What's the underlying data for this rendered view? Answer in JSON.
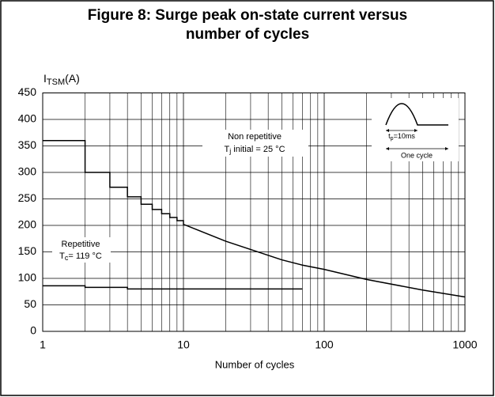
{
  "chart_data": {
    "type": "line",
    "title": [
      "Figure 8: Surge peak on-state current versus",
      "number of cycles"
    ],
    "ylabel": {
      "main": "I",
      "sub": "TSM",
      "unit": "(A)"
    },
    "xlabel": "Number of cycles",
    "xlog": true,
    "xlim": [
      1,
      1000
    ],
    "ylim": [
      0,
      450
    ],
    "xticks": [
      1,
      10,
      100,
      1000
    ],
    "xminor": [
      2,
      3,
      4,
      5,
      6,
      7,
      8,
      9,
      20,
      30,
      40,
      50,
      60,
      70,
      80,
      90,
      200,
      300,
      400,
      500,
      600,
      700,
      800,
      900
    ],
    "yticks": [
      0,
      50,
      100,
      150,
      200,
      250,
      300,
      350,
      400,
      450
    ],
    "grid": true,
    "series": [
      {
        "name": "Non repetitive",
        "color": "#000000",
        "x": [
          1,
          2,
          2,
          3,
          3,
          4,
          4,
          5,
          5,
          6,
          6,
          7,
          7,
          8,
          8,
          9,
          9,
          10,
          10,
          20,
          50,
          70,
          100,
          200,
          500,
          1000
        ],
        "values": [
          360,
          360,
          300,
          300,
          272,
          272,
          254,
          254,
          240,
          240,
          230,
          230,
          222,
          222,
          215,
          215,
          209,
          209,
          202,
          170,
          135,
          125,
          117,
          98,
          78,
          65
        ]
      },
      {
        "name": "Repetitive",
        "color": "#000000",
        "x": [
          1,
          2,
          2,
          4,
          4,
          70
        ],
        "values": [
          86,
          86,
          83,
          83,
          80,
          80
        ]
      }
    ],
    "annotations": {
      "non_repetitive": {
        "line1": "Non repetitive",
        "main": "T",
        "sub": "j",
        "rest": " initial = 25 °C"
      },
      "repetitive": {
        "line1": "Repetitive",
        "main": "T",
        "sub": "c",
        "rest": "= 119 °C"
      },
      "pulse": {
        "main": "t",
        "sub": "p",
        "rest": "=10ms",
        "cycle": "One cycle"
      }
    }
  }
}
